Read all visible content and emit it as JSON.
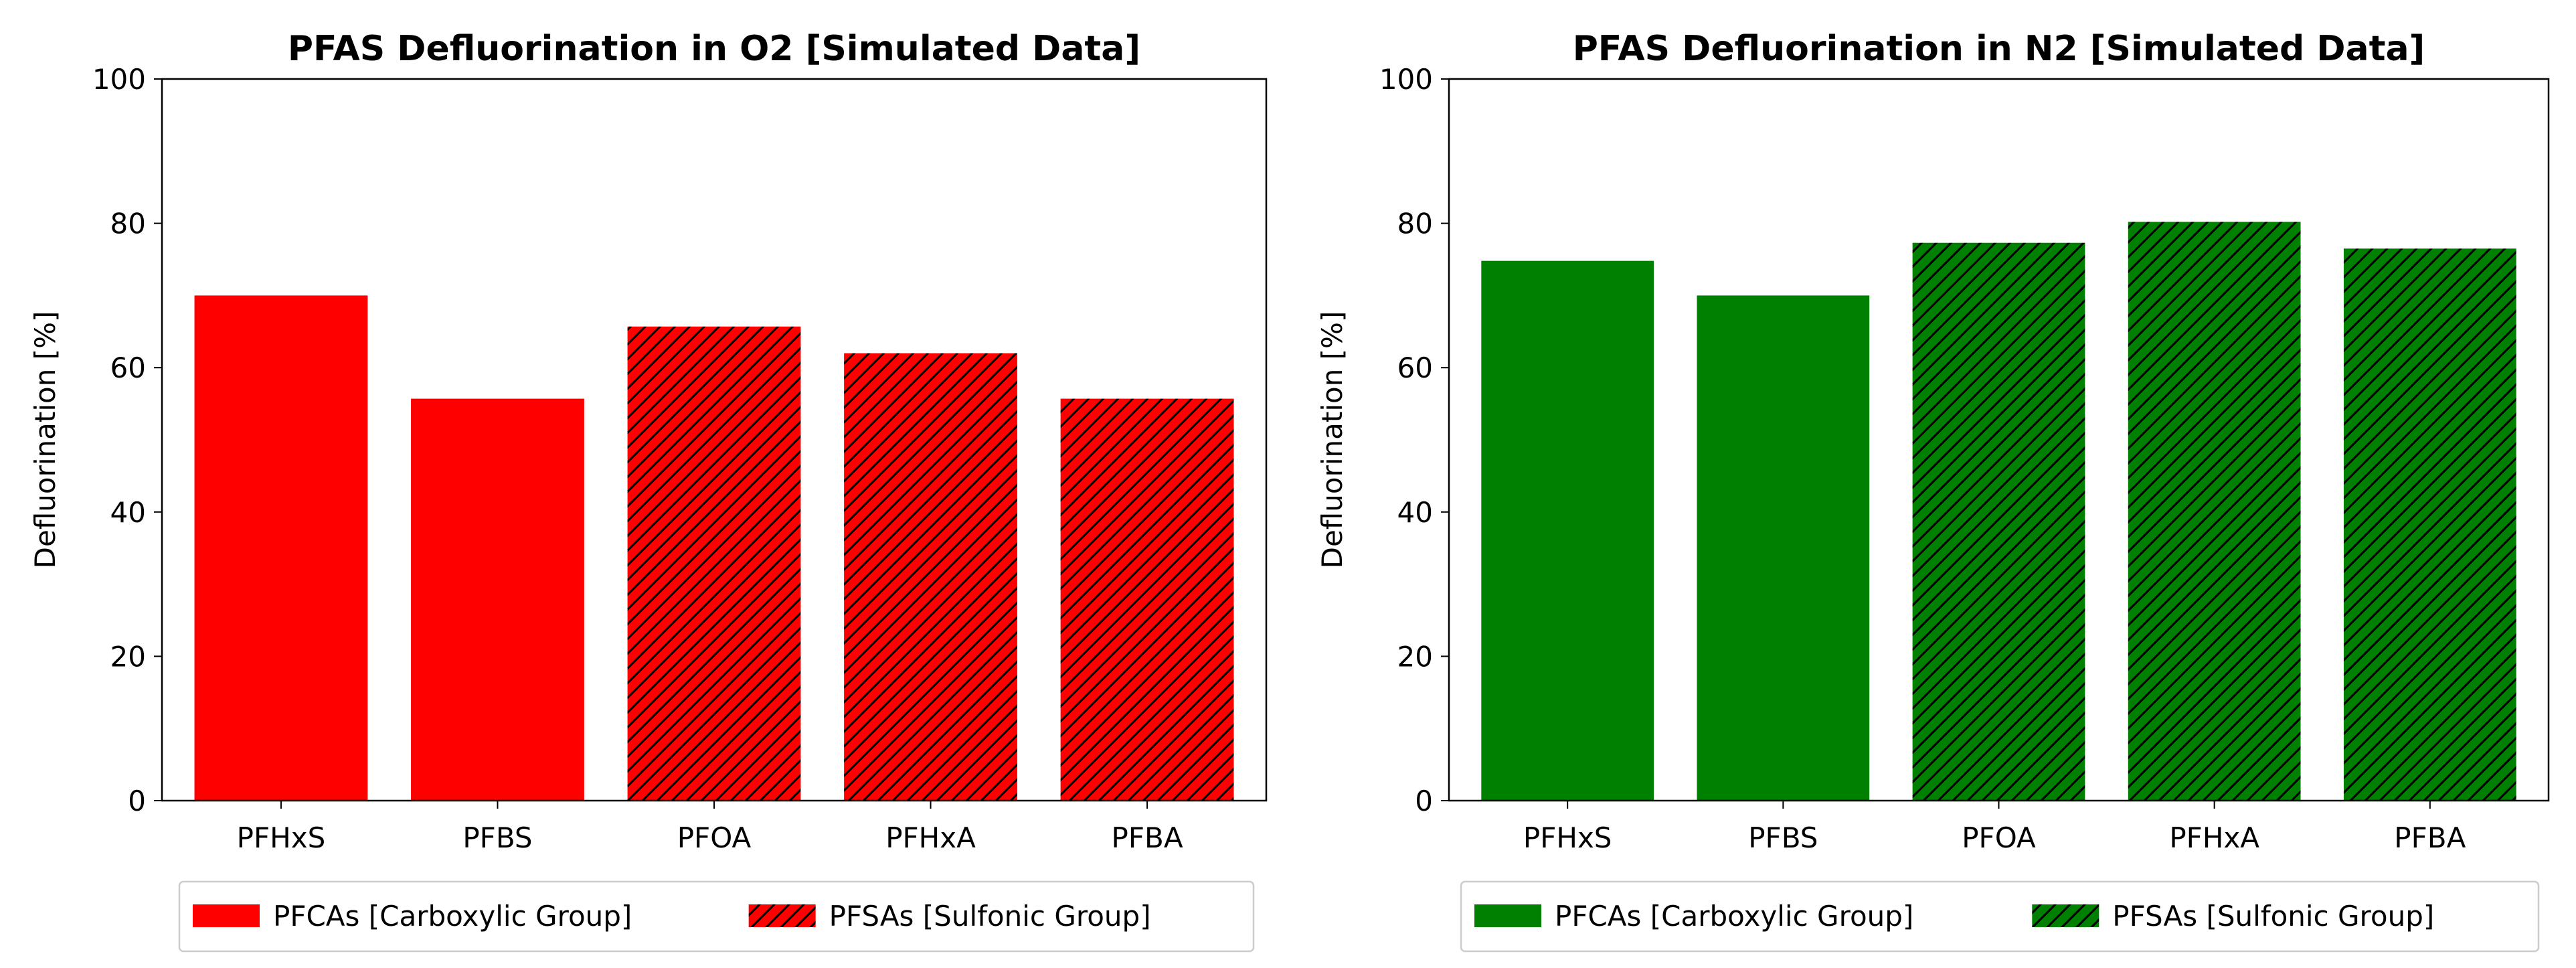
{
  "chart_data": [
    {
      "type": "bar",
      "title": "PFAS Defluorination in O2 [Simulated Data]",
      "xlabel": "",
      "ylabel": "Defluorination [%]",
      "ylim": [
        0,
        100
      ],
      "yticks": [
        0,
        20,
        40,
        60,
        80,
        100
      ],
      "grid": false,
      "color": "#ff0000",
      "categories": [
        "PFHxS",
        "PFBS",
        "PFOA",
        "PFHxA",
        "PFBA"
      ],
      "values": [
        70,
        55.7,
        65.7,
        62,
        55.7
      ],
      "groups": [
        "PFCAs [Carboxylic Group]",
        "PFCAs [Carboxylic Group]",
        "PFSAs [Sulfonic Group]",
        "PFSAs [Sulfonic Group]",
        "PFSAs [Sulfonic Group]"
      ],
      "hatched": [
        false,
        false,
        true,
        true,
        true
      ],
      "legend": {
        "placement": "bottom-center",
        "entries": [
          {
            "label": "PFCAs [Carboxylic Group]",
            "hatched": false
          },
          {
            "label": "PFSAs [Sulfonic Group]",
            "hatched": true
          }
        ]
      }
    },
    {
      "type": "bar",
      "title": "PFAS Defluorination in N2 [Simulated Data]",
      "xlabel": "",
      "ylabel": "Defluorination [%]",
      "ylim": [
        0,
        100
      ],
      "yticks": [
        0,
        20,
        40,
        60,
        80,
        100
      ],
      "grid": false,
      "color": "#008000",
      "categories": [
        "PFHxS",
        "PFBS",
        "PFOA",
        "PFHxA",
        "PFBA"
      ],
      "values": [
        74.8,
        70,
        77.3,
        80.2,
        76.5
      ],
      "groups": [
        "PFCAs [Carboxylic Group]",
        "PFCAs [Carboxylic Group]",
        "PFSAs [Sulfonic Group]",
        "PFSAs [Sulfonic Group]",
        "PFSAs [Sulfonic Group]"
      ],
      "hatched": [
        false,
        false,
        true,
        true,
        true
      ],
      "legend": {
        "placement": "bottom-center",
        "entries": [
          {
            "label": "PFCAs [Carboxylic Group]",
            "hatched": false
          },
          {
            "label": "PFSAs [Sulfonic Group]",
            "hatched": true
          }
        ]
      }
    }
  ]
}
